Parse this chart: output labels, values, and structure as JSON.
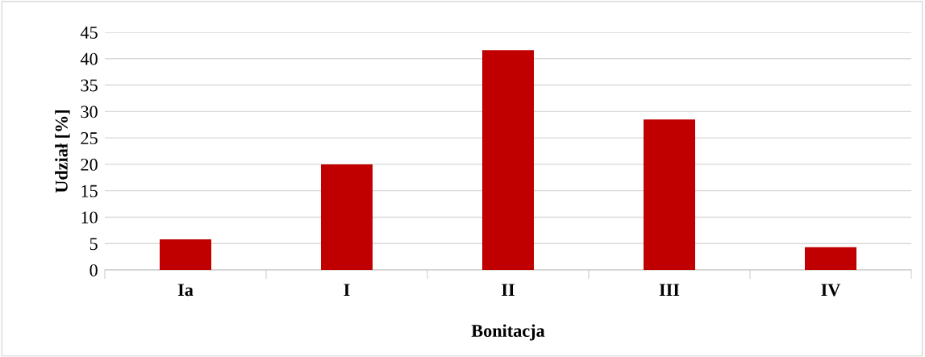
{
  "chart_data": {
    "type": "bar",
    "xlabel": "Bonitacja",
    "ylabel": "Udział [%]",
    "categories": [
      "Ia",
      "I",
      "II",
      "III",
      "IV"
    ],
    "values": [
      5.8,
      20.0,
      41.6,
      28.5,
      4.3
    ],
    "color": "#c00000",
    "ylim": [
      0,
      45
    ],
    "yticks": [
      0,
      5,
      10,
      15,
      20,
      25,
      30,
      35,
      40,
      45
    ],
    "grid": "y",
    "legend": false
  }
}
